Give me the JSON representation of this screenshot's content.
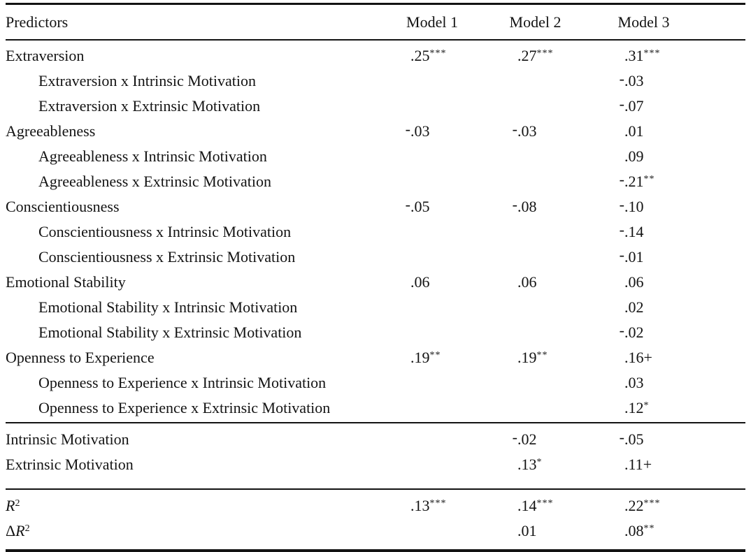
{
  "table": {
    "header": {
      "predictors": "Predictors",
      "model1": "Model 1",
      "model2": "Model 2",
      "model3": "Model 3"
    },
    "significance_markers": {
      "p_001": "***",
      "p_01": "**",
      "p_05": "*",
      "p_10": "+"
    },
    "sections": [
      {
        "rows": [
          {
            "indent": false,
            "label": {
              "text": "Extraversion"
            },
            "m1": {
              "base": ".25",
              "sup": "***"
            },
            "m2": {
              "base": ".27",
              "sup": "***"
            },
            "m3": {
              "base": ".31",
              "sup": "***"
            }
          },
          {
            "indent": true,
            "label": {
              "text": "Extraversion x Intrinsic Motivation"
            },
            "m3": {
              "neg": "-",
              "base": ".03"
            }
          },
          {
            "indent": true,
            "label": {
              "text": "Extraversion x Extrinsic Motivation"
            },
            "m3": {
              "neg": "-",
              "base": ".07"
            }
          },
          {
            "indent": false,
            "label": {
              "text": "Agreeableness"
            },
            "m1": {
              "neg": "-",
              "base": ".03"
            },
            "m2": {
              "neg": "-",
              "base": ".03"
            },
            "m3": {
              "base": ".01"
            }
          },
          {
            "indent": true,
            "label": {
              "text": "Agreeableness x Intrinsic Motivation"
            },
            "m3": {
              "base": ".09"
            }
          },
          {
            "indent": true,
            "label": {
              "text": "Agreeableness x Extrinsic Motivation"
            },
            "m3": {
              "neg": "-",
              "base": ".21",
              "sup": "**"
            }
          },
          {
            "indent": false,
            "label": {
              "text": "Conscientiousness"
            },
            "m1": {
              "neg": "-",
              "base": ".05"
            },
            "m2": {
              "neg": "-",
              "base": ".08"
            },
            "m3": {
              "neg": "-",
              "base": ".10"
            }
          },
          {
            "indent": true,
            "label": {
              "text": "Conscientiousness x Intrinsic Motivation"
            },
            "m3": {
              "neg": "-",
              "base": ".14"
            }
          },
          {
            "indent": true,
            "label": {
              "text": "Conscientiousness x Extrinsic Motivation"
            },
            "m3": {
              "neg": "-",
              "base": ".01"
            }
          },
          {
            "indent": false,
            "label": {
              "text": "Emotional Stability"
            },
            "m1": {
              "base": ".06"
            },
            "m2": {
              "base": ".06"
            },
            "m3": {
              "base": ".06"
            }
          },
          {
            "indent": true,
            "label": {
              "text": "Emotional Stability x Intrinsic Motivation"
            },
            "m3": {
              "base": ".02"
            }
          },
          {
            "indent": true,
            "label": {
              "text": "Emotional Stability x Extrinsic Motivation"
            },
            "m3": {
              "neg": "-",
              "base": ".02"
            }
          },
          {
            "indent": false,
            "label": {
              "text": "Openness to Experience"
            },
            "m1": {
              "base": ".19",
              "sup": "**"
            },
            "m2": {
              "base": ".19",
              "sup": "**"
            },
            "m3": {
              "base": ".16",
              "post": "+"
            }
          },
          {
            "indent": true,
            "label": {
              "text": "Openness to Experience x Intrinsic Motivation"
            },
            "m3": {
              "base": ".03"
            }
          },
          {
            "indent": true,
            "label": {
              "text": "Openness to Experience x Extrinsic Motivation"
            },
            "m3": {
              "base": ".12",
              "sup": "*"
            }
          }
        ]
      },
      {
        "rows": [
          {
            "indent": false,
            "label": {
              "text": "Intrinsic Motivation"
            },
            "m2": {
              "neg": "-",
              "base": ".02"
            },
            "m3": {
              "neg": "-",
              "base": ".05"
            }
          },
          {
            "indent": false,
            "label": {
              "text": "Extrinsic Motivation"
            },
            "m2": {
              "base": ".13",
              "sup": "*"
            },
            "m3": {
              "base": ".11",
              "post": "+"
            }
          }
        ]
      },
      {
        "rows": [
          {
            "indent": false,
            "label": {
              "italic": "R",
              "sup": "2"
            },
            "m1": {
              "base": ".13",
              "sup": "***"
            },
            "m2": {
              "base": ".14",
              "sup": "***"
            },
            "m3": {
              "base": ".22",
              "sup": "***"
            }
          },
          {
            "indent": false,
            "label": {
              "pre": "Δ",
              "italic": "R",
              "sup": "2"
            },
            "m2": {
              "base": ".01"
            },
            "m3": {
              "base": ".08",
              "sup": "**"
            }
          }
        ]
      }
    ]
  }
}
